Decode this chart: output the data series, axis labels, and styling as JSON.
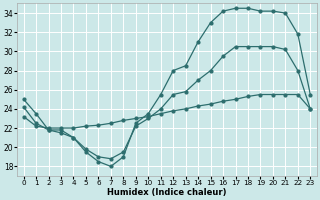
{
  "bg_color": "#cce8e8",
  "line_color": "#2d6e6e",
  "grid_color": "#ffffff",
  "xlabel": "Humidex (Indice chaleur)",
  "ylim": [
    17,
    35
  ],
  "xlim": [
    -0.5,
    23.5
  ],
  "yticks": [
    18,
    20,
    22,
    24,
    26,
    28,
    30,
    32,
    34
  ],
  "xticks": [
    0,
    1,
    2,
    3,
    4,
    5,
    6,
    7,
    8,
    9,
    10,
    11,
    12,
    13,
    14,
    15,
    16,
    17,
    18,
    19,
    20,
    21,
    22,
    23
  ],
  "curve1_x": [
    0,
    1,
    2,
    3,
    4,
    5,
    6,
    7,
    8,
    9,
    10,
    11,
    12,
    13,
    14,
    15,
    16,
    17,
    18,
    19,
    20,
    21,
    22,
    23
  ],
  "curve1_y": [
    25.0,
    23.5,
    21.8,
    21.8,
    21.0,
    19.5,
    18.5,
    18.0,
    19.0,
    22.5,
    23.5,
    25.5,
    28.0,
    28.5,
    31.0,
    33.0,
    34.2,
    34.5,
    34.5,
    34.2,
    34.2,
    34.0,
    31.8,
    25.5
  ],
  "curve2_x": [
    0,
    1,
    2,
    3,
    4,
    5,
    6,
    7,
    8,
    9,
    10,
    11,
    12,
    13,
    14,
    15,
    16,
    17,
    18,
    19,
    20,
    21,
    22,
    23
  ],
  "curve2_y": [
    23.2,
    22.2,
    22.0,
    22.0,
    22.0,
    22.2,
    22.3,
    22.5,
    22.8,
    23.0,
    23.2,
    23.5,
    23.8,
    24.0,
    24.3,
    24.5,
    24.8,
    25.0,
    25.3,
    25.5,
    25.5,
    25.5,
    25.5,
    24.0
  ],
  "curve3_x": [
    0,
    1,
    2,
    3,
    4,
    5,
    6,
    7,
    8,
    9,
    10,
    11,
    12,
    13,
    14,
    15,
    16,
    17,
    18,
    19,
    20,
    21,
    22,
    23
  ],
  "curve3_y": [
    24.2,
    22.5,
    21.8,
    21.5,
    21.0,
    19.8,
    19.0,
    18.8,
    19.5,
    22.2,
    23.0,
    24.0,
    25.5,
    25.8,
    27.0,
    28.0,
    29.5,
    30.5,
    30.5,
    30.5,
    30.5,
    30.2,
    28.0,
    24.0
  ]
}
